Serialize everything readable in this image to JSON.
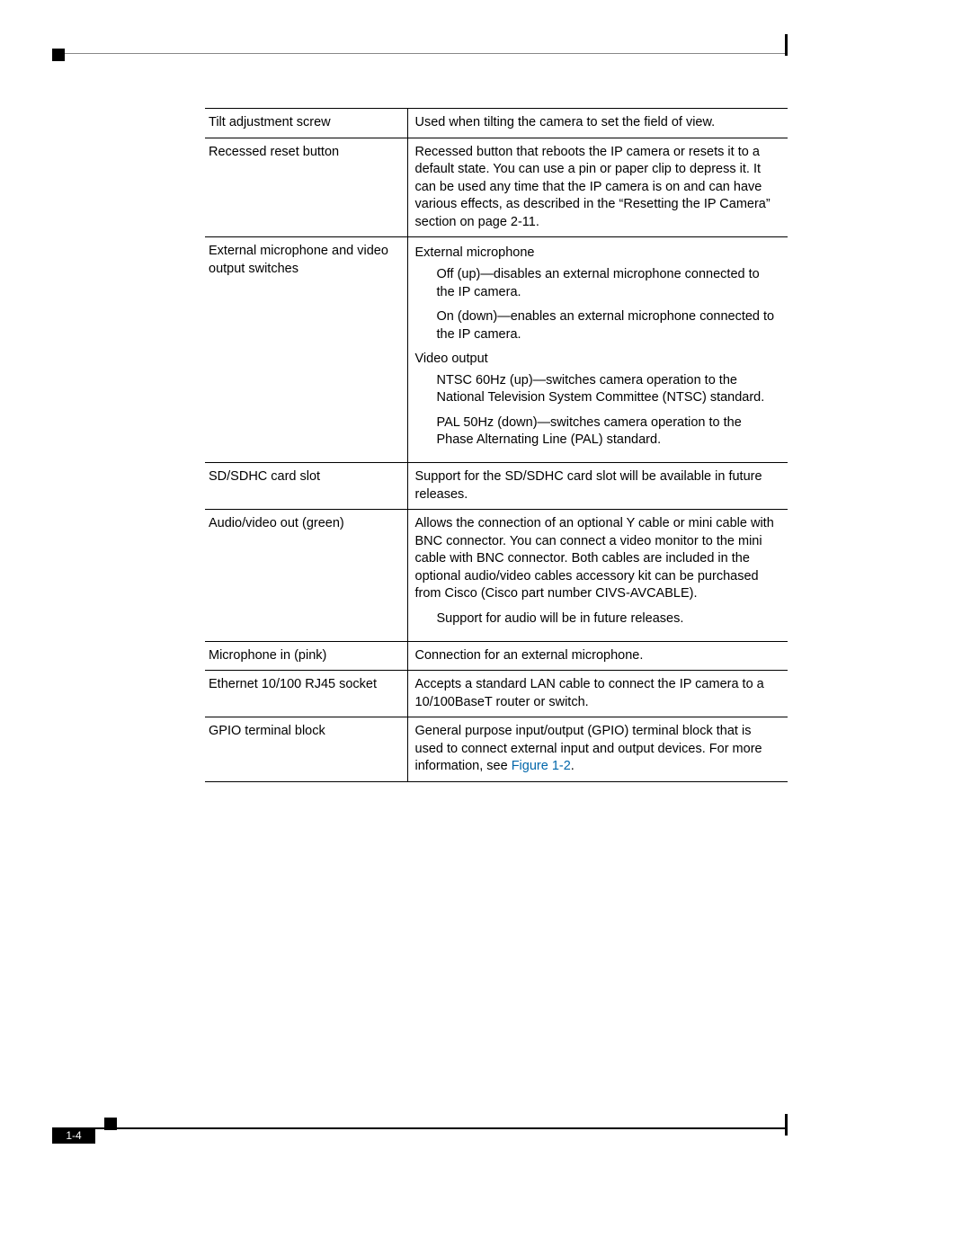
{
  "page_number": "1-4",
  "figure_ref": "Figure 1-2",
  "link_color": "#0066aa",
  "table": {
    "rows": [
      {
        "label": "Tilt adjustment screw",
        "desc": "Used when tilting the camera to set the field of view."
      },
      {
        "label": "Recessed reset button",
        "desc": "Recessed button that reboots the IP camera or resets it to a default state. You can use a pin or paper clip to depress it. It can be used any time that the IP camera is on and can have various effects, as described in the “Resetting the IP Camera” section on page 2-11."
      },
      {
        "label": "External microphone and video output switches",
        "subhead1": "External microphone",
        "sub1_item1": "Off (up)—disables an external microphone connected to the IP camera.",
        "sub1_item2": "On (down)—enables an external microphone connected to the IP camera.",
        "subhead2": "Video output",
        "sub2_item1": "NTSC 60Hz (up)—switches camera operation to the National Television System Committee (NTSC) standard.",
        "sub2_item2": "PAL 50Hz (down)—switches camera operation to the Phase Alternating Line (PAL) standard."
      },
      {
        "label": "SD/SDHC card slot",
        "desc": "Support for the SD/SDHC card slot will be available in future releases."
      },
      {
        "label": "Audio/video out (green)",
        "desc": "Allows the connection of an optional Y cable or mini cable with BNC connector. You can connect a video monitor to the mini cable with BNC connector. Both cables are included in the optional audio/video cables accessory kit can be purchased from Cisco (Cisco part number CIVS-AVCABLE).",
        "desc2": "Support for audio will be in future releases."
      },
      {
        "label": "Microphone in (pink)",
        "desc": "Connection for an external microphone."
      },
      {
        "label": "Ethernet 10/100 RJ45 socket",
        "desc": "Accepts a standard LAN cable to connect the IP camera to a 10/100BaseT router or switch."
      },
      {
        "label": "GPIO terminal block",
        "desc_pre": "General purpose input/output (GPIO) terminal block that is used to connect external input and output devices. For more information, see ",
        "desc_post": "."
      }
    ]
  }
}
